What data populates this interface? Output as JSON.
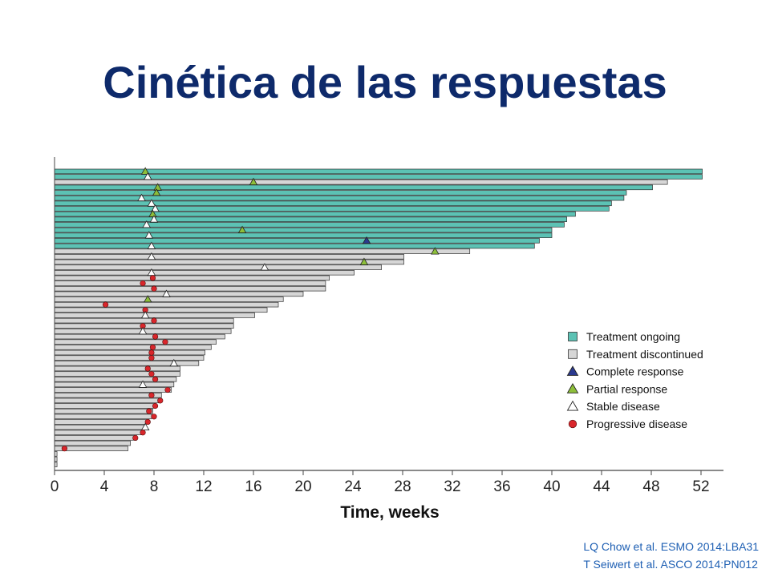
{
  "slide": {
    "title": "Cinética de las respuestas",
    "citations": [
      "LQ Chow et al. ESMO 2014:LBA31",
      "T Seiwert et al. ASCO 2014:PN012"
    ]
  },
  "colors": {
    "title": "#0e2a6b",
    "ongoing": "#5cc2b4",
    "discontinued": "#d6d6d6",
    "complete": "#2b3a8f",
    "partial": "#8dbf3a",
    "stable": "#ffffff",
    "progressive": "#d9262b",
    "citation": "#1e5fb3"
  },
  "chart_data": {
    "type": "bar",
    "orientation": "horizontal",
    "title": "",
    "xlabel": "Time, weeks",
    "ylabel": "",
    "xlim": [
      0,
      54
    ],
    "xticks": [
      0,
      4,
      8,
      12,
      16,
      20,
      24,
      28,
      32,
      36,
      40,
      44,
      48,
      52
    ],
    "grid": false,
    "legend_position": "right",
    "legend": [
      {
        "key": "ongoing",
        "label": "Treatment ongoing",
        "marker": "square"
      },
      {
        "key": "discontinued",
        "label": "Treatment discontinued",
        "marker": "square"
      },
      {
        "key": "complete",
        "label": "Complete response",
        "marker": "triangle"
      },
      {
        "key": "partial",
        "label": "Partial response",
        "marker": "triangle"
      },
      {
        "key": "stable",
        "label": "Stable disease",
        "marker": "triangle"
      },
      {
        "key": "progressive",
        "label": "Progressive disease",
        "marker": "circle"
      }
    ],
    "patients": [
      {
        "duration": 52.1,
        "status": "ongoing",
        "response": "partial",
        "response_week": 7.3
      },
      {
        "duration": 52.1,
        "status": "ongoing",
        "response": "stable",
        "response_week": 7.5
      },
      {
        "duration": 49.3,
        "status": "discontinued",
        "response": "partial",
        "response_week": 16.0
      },
      {
        "duration": 48.1,
        "status": "ongoing",
        "response": "partial",
        "response_week": 8.3
      },
      {
        "duration": 46.0,
        "status": "ongoing",
        "response": "partial",
        "response_week": 8.2
      },
      {
        "duration": 45.8,
        "status": "ongoing",
        "response": "stable",
        "response_week": 7.0
      },
      {
        "duration": 44.8,
        "status": "ongoing",
        "response": "stable",
        "response_week": 7.8
      },
      {
        "duration": 44.6,
        "status": "ongoing",
        "response": "stable",
        "response_week": 8.1
      },
      {
        "duration": 41.9,
        "status": "ongoing",
        "response": "partial",
        "response_week": 7.9
      },
      {
        "duration": 41.2,
        "status": "ongoing",
        "response": "stable",
        "response_week": 8.0
      },
      {
        "duration": 41.0,
        "status": "ongoing",
        "response": "stable",
        "response_week": 7.4
      },
      {
        "duration": 40.0,
        "status": "ongoing",
        "response": "partial",
        "response_week": 15.1
      },
      {
        "duration": 40.0,
        "status": "ongoing",
        "response": "stable",
        "response_week": 7.6
      },
      {
        "duration": 39.0,
        "status": "ongoing",
        "response": "complete",
        "response_week": 25.1
      },
      {
        "duration": 38.6,
        "status": "ongoing",
        "response": "stable",
        "response_week": 7.8
      },
      {
        "duration": 33.4,
        "status": "discontinued",
        "response": "partial",
        "response_week": 30.6
      },
      {
        "duration": 28.1,
        "status": "discontinued",
        "response": "stable",
        "response_week": 7.8
      },
      {
        "duration": 28.1,
        "status": "discontinued",
        "response": "partial",
        "response_week": 24.9
      },
      {
        "duration": 26.3,
        "status": "discontinued",
        "response": "stable",
        "response_week": 16.9
      },
      {
        "duration": 24.1,
        "status": "discontinued",
        "response": "stable",
        "response_week": 7.8
      },
      {
        "duration": 22.1,
        "status": "discontinued",
        "response": "progressive",
        "response_week": 7.9
      },
      {
        "duration": 21.8,
        "status": "discontinued",
        "response": "progressive",
        "response_week": 7.1
      },
      {
        "duration": 21.8,
        "status": "discontinued",
        "response": "progressive",
        "response_week": 8.0
      },
      {
        "duration": 20.0,
        "status": "discontinued",
        "response": "stable",
        "response_week": 9.0
      },
      {
        "duration": 18.4,
        "status": "discontinued",
        "response": "partial",
        "response_week": 7.5
      },
      {
        "duration": 18.0,
        "status": "discontinued",
        "response": "progressive",
        "response_week": 4.1
      },
      {
        "duration": 17.1,
        "status": "discontinued",
        "response": "progressive",
        "response_week": 7.3
      },
      {
        "duration": 16.1,
        "status": "discontinued",
        "response": "stable",
        "response_week": 7.3
      },
      {
        "duration": 14.4,
        "status": "discontinued",
        "response": "progressive",
        "response_week": 8.0
      },
      {
        "duration": 14.4,
        "status": "discontinued",
        "response": "progressive",
        "response_week": 7.1
      },
      {
        "duration": 14.2,
        "status": "discontinued",
        "response": "stable",
        "response_week": 7.1
      },
      {
        "duration": 13.7,
        "status": "discontinued",
        "response": "progressive",
        "response_week": 8.1
      },
      {
        "duration": 13.0,
        "status": "discontinued",
        "response": "progressive",
        "response_week": 8.9
      },
      {
        "duration": 12.6,
        "status": "discontinued",
        "response": "progressive",
        "response_week": 7.9
      },
      {
        "duration": 12.1,
        "status": "discontinued",
        "response": "progressive",
        "response_week": 7.8
      },
      {
        "duration": 12.0,
        "status": "discontinued",
        "response": "progressive",
        "response_week": 7.8
      },
      {
        "duration": 11.6,
        "status": "discontinued",
        "response": "stable",
        "response_week": 9.6
      },
      {
        "duration": 10.1,
        "status": "discontinued",
        "response": "progressive",
        "response_week": 7.5
      },
      {
        "duration": 10.1,
        "status": "discontinued",
        "response": "progressive",
        "response_week": 7.8
      },
      {
        "duration": 9.8,
        "status": "discontinued",
        "response": "progressive",
        "response_week": 8.1
      },
      {
        "duration": 9.6,
        "status": "discontinued",
        "response": "stable",
        "response_week": 7.1
      },
      {
        "duration": 9.4,
        "status": "discontinued",
        "response": "progressive",
        "response_week": 9.1
      },
      {
        "duration": 8.6,
        "status": "discontinued",
        "response": "progressive",
        "response_week": 7.8
      },
      {
        "duration": 8.4,
        "status": "discontinued",
        "response": "progressive",
        "response_week": 8.5
      },
      {
        "duration": 8.1,
        "status": "discontinued",
        "response": "progressive",
        "response_week": 8.1
      },
      {
        "duration": 7.9,
        "status": "discontinued",
        "response": "progressive",
        "response_week": 7.6
      },
      {
        "duration": 7.8,
        "status": "discontinued",
        "response": "progressive",
        "response_week": 8.0
      },
      {
        "duration": 7.6,
        "status": "discontinued",
        "response": "progressive",
        "response_week": 7.5
      },
      {
        "duration": 7.3,
        "status": "discontinued",
        "response": "stable",
        "response_week": 7.3
      },
      {
        "duration": 7.1,
        "status": "discontinued",
        "response": "progressive",
        "response_week": 7.1
      },
      {
        "duration": 6.6,
        "status": "discontinued",
        "response": "progressive",
        "response_week": 6.5
      },
      {
        "duration": 6.1,
        "status": "discontinued",
        "response": null,
        "response_week": null
      },
      {
        "duration": 5.9,
        "status": "discontinued",
        "response": "progressive",
        "response_week": 0.8
      },
      {
        "duration": 0.2,
        "status": "discontinued",
        "response": null,
        "response_week": null
      },
      {
        "duration": 0.2,
        "status": "discontinued",
        "response": null,
        "response_week": null
      },
      {
        "duration": 0.2,
        "status": "discontinued",
        "response": null,
        "response_week": null
      }
    ]
  }
}
